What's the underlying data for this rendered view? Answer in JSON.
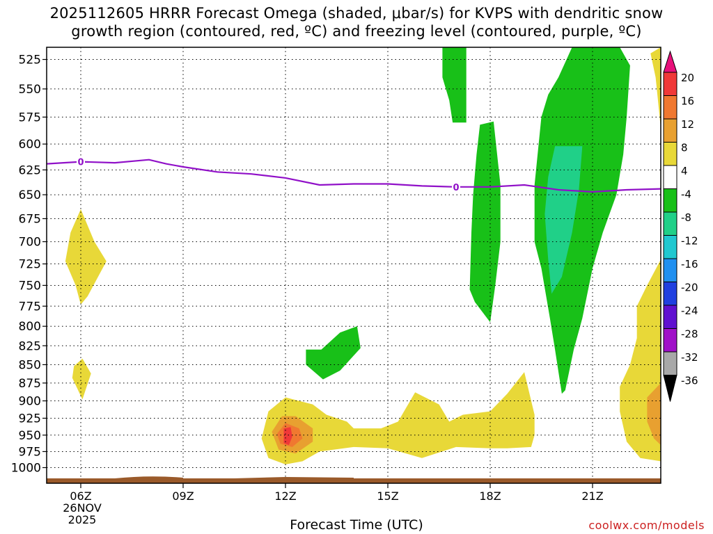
{
  "title": {
    "line1": "2025112605 HRRR Forecast Omega (shaded, μbar/s) for KVPS with dendritic snow",
    "line2": "growth region (contoured, red, ºC) and freezing level (contoured, purple, ºC)"
  },
  "xaxis_title": "Forecast Time (UTC)",
  "watermark": "coolwx.com/models",
  "date_label": {
    "day": "26NOV",
    "year": "2025"
  },
  "chart_data": {
    "type": "heatmap",
    "title": "2025112605 HRRR Forecast Omega (shaded, μbar/s) for KVPS with dendritic snow growth region (contoured, red, ºC) and freezing level (contoured, purple, ºC)",
    "xlabel": "Forecast Time (UTC)",
    "ylabel": "",
    "x_range_hours": [
      5,
      23
    ],
    "x_ticks": [
      {
        "hour": 6,
        "label": "06Z"
      },
      {
        "hour": 9,
        "label": "09Z"
      },
      {
        "hour": 12,
        "label": "12Z"
      },
      {
        "hour": 15,
        "label": "15Z"
      },
      {
        "hour": 18,
        "label": "18Z"
      },
      {
        "hour": 21,
        "label": "21Z"
      }
    ],
    "y_ticks": [
      525,
      550,
      575,
      600,
      625,
      650,
      675,
      700,
      725,
      750,
      775,
      800,
      825,
      850,
      875,
      900,
      925,
      950,
      975,
      1000
    ],
    "y_range_hPa": [
      515,
      1025
    ],
    "y_scale": "log-pressure",
    "grid": true,
    "colorbar": {
      "labels": [
        "20",
        "16",
        "12",
        "8",
        "4",
        "-4",
        "-8",
        "-12",
        "-16",
        "-20",
        "-24",
        "-28",
        "-32",
        "-36"
      ],
      "bands": [
        {
          "lo": 20,
          "hi": 24,
          "color": "#e8107a"
        },
        {
          "lo": 16,
          "hi": 20,
          "color": "#f03838"
        },
        {
          "lo": 12,
          "hi": 16,
          "color": "#f07830"
        },
        {
          "lo": 8,
          "hi": 12,
          "color": "#e8a030"
        },
        {
          "lo": 4,
          "hi": 8,
          "color": "#e8d838"
        },
        {
          "lo": -4,
          "hi": 4,
          "color": "#ffffff"
        },
        {
          "lo": -8,
          "hi": -4,
          "color": "#18c018"
        },
        {
          "lo": -12,
          "hi": -8,
          "color": "#20d088"
        },
        {
          "lo": -16,
          "hi": -12,
          "color": "#20c8d0"
        },
        {
          "lo": -20,
          "hi": -16,
          "color": "#2090f0"
        },
        {
          "lo": -24,
          "hi": -20,
          "color": "#2040e0"
        },
        {
          "lo": -28,
          "hi": -24,
          "color": "#6010d0"
        },
        {
          "lo": -32,
          "hi": -28,
          "color": "#a010c8"
        },
        {
          "lo": -36,
          "hi": -32,
          "color": "#a8a8a8"
        },
        {
          "lo": -40,
          "hi": -36,
          "color": "#000000"
        }
      ]
    },
    "freezing_level": {
      "label": "0",
      "label_hours": [
        6.0,
        17.0
      ],
      "color": "#9010c8",
      "points": [
        [
          5.0,
          619
        ],
        [
          6.0,
          617
        ],
        [
          7.0,
          618
        ],
        [
          8.0,
          615
        ],
        [
          8.5,
          619
        ],
        [
          9.0,
          622
        ],
        [
          10.0,
          627
        ],
        [
          11.0,
          629
        ],
        [
          12.0,
          633
        ],
        [
          13.0,
          640
        ],
        [
          14.0,
          639
        ],
        [
          15.0,
          639
        ],
        [
          16.0,
          641
        ],
        [
          17.0,
          642
        ],
        [
          18.0,
          642
        ],
        [
          19.0,
          640
        ],
        [
          20.0,
          645
        ],
        [
          21.0,
          647
        ],
        [
          22.0,
          645
        ],
        [
          23.0,
          644
        ]
      ]
    },
    "omega_regions": [
      {
        "value_band": "4 to 8",
        "color": "#e8d838",
        "polygon": [
          [
            6.0,
            665
          ],
          [
            6.4,
            700
          ],
          [
            6.75,
            722
          ],
          [
            6.2,
            763
          ],
          [
            6.0,
            773
          ],
          [
            5.85,
            750
          ],
          [
            5.55,
            722
          ],
          [
            5.7,
            690
          ]
        ]
      },
      {
        "value_band": "4 to 8",
        "color": "#e8d838",
        "polygon": [
          [
            6.05,
            842
          ],
          [
            6.3,
            862
          ],
          [
            6.05,
            898
          ],
          [
            5.75,
            868
          ],
          [
            5.8,
            852
          ]
        ]
      },
      {
        "value_band": "4 to 8",
        "color": "#e8d838",
        "polygon": [
          [
            11.3,
            955
          ],
          [
            11.5,
            915
          ],
          [
            12.0,
            895
          ],
          [
            12.8,
            905
          ],
          [
            13.2,
            920
          ],
          [
            13.8,
            930
          ],
          [
            14.0,
            940
          ],
          [
            14.8,
            940
          ],
          [
            15.3,
            930
          ],
          [
            15.8,
            888
          ],
          [
            16.5,
            905
          ],
          [
            16.8,
            930
          ],
          [
            17.2,
            920
          ],
          [
            18.0,
            915
          ],
          [
            18.5,
            890
          ],
          [
            19.0,
            860
          ],
          [
            19.3,
            920
          ],
          [
            19.3,
            950
          ],
          [
            19.2,
            968
          ],
          [
            18.5,
            970
          ],
          [
            18.0,
            970
          ],
          [
            17.0,
            968
          ],
          [
            16.0,
            985
          ],
          [
            15.0,
            970
          ],
          [
            14.0,
            968
          ],
          [
            13.0,
            975
          ],
          [
            12.5,
            990
          ],
          [
            12.0,
            995
          ],
          [
            11.5,
            985
          ]
        ]
      },
      {
        "value_band": "8 to 12",
        "color": "#e8a030",
        "polygon": [
          [
            11.6,
            945
          ],
          [
            11.9,
            922
          ],
          [
            12.3,
            922
          ],
          [
            12.8,
            940
          ],
          [
            12.8,
            960
          ],
          [
            12.3,
            978
          ],
          [
            11.8,
            972
          ]
        ]
      },
      {
        "value_band": "12 to 16",
        "color": "#f07830",
        "polygon": [
          [
            11.75,
            948
          ],
          [
            12.0,
            932
          ],
          [
            12.4,
            940
          ],
          [
            12.5,
            955
          ],
          [
            12.2,
            968
          ],
          [
            11.85,
            963
          ]
        ]
      },
      {
        "value_band": "16 to 20",
        "color": "#f03838",
        "polygon": [
          [
            11.95,
            940
          ],
          [
            12.15,
            938
          ],
          [
            12.2,
            952
          ],
          [
            12.1,
            965
          ],
          [
            11.95,
            962
          ]
        ]
      },
      {
        "value_band": "4 to 8",
        "color": "#e8d838",
        "polygon": [
          [
            23.0,
            720
          ],
          [
            22.6,
            750
          ],
          [
            22.3,
            775
          ],
          [
            22.3,
            815
          ],
          [
            22.1,
            850
          ],
          [
            21.8,
            880
          ],
          [
            21.8,
            915
          ],
          [
            22.0,
            960
          ],
          [
            22.4,
            985
          ],
          [
            23.0,
            990
          ]
        ]
      },
      {
        "value_band": "4 to 8",
        "color": "#e8d838",
        "polygon": [
          [
            22.7,
            520
          ],
          [
            23.0,
            515
          ],
          [
            23.0,
            585
          ],
          [
            22.85,
            540
          ]
        ]
      },
      {
        "value_band": "8 to 12",
        "color": "#e8a030",
        "polygon": [
          [
            23.0,
            875
          ],
          [
            22.6,
            895
          ],
          [
            22.6,
            930
          ],
          [
            22.8,
            955
          ],
          [
            23.0,
            965
          ]
        ]
      },
      {
        "value_band": "-4 to -8",
        "color": "#18c018",
        "polygon": [
          [
            16.6,
            515
          ],
          [
            17.3,
            515
          ],
          [
            17.3,
            580
          ],
          [
            16.9,
            580
          ],
          [
            16.8,
            560
          ],
          [
            16.6,
            540
          ]
        ]
      },
      {
        "value_band": "-4 to -8",
        "color": "#18c018",
        "polygon": [
          [
            17.7,
            582
          ],
          [
            18.1,
            579
          ],
          [
            18.3,
            640
          ],
          [
            18.3,
            700
          ],
          [
            18.15,
            750
          ],
          [
            18.0,
            795
          ],
          [
            17.55,
            770
          ],
          [
            17.4,
            755
          ],
          [
            17.45,
            690
          ],
          [
            17.5,
            650
          ],
          [
            17.6,
            610
          ]
        ]
      },
      {
        "value_band": "-4 to -8",
        "color": "#18c018",
        "polygon": [
          [
            20.4,
            515
          ],
          [
            21.8,
            515
          ],
          [
            22.1,
            530
          ],
          [
            22.0,
            575
          ],
          [
            21.9,
            610
          ],
          [
            21.7,
            650
          ],
          [
            21.3,
            690
          ],
          [
            21.0,
            730
          ],
          [
            20.7,
            790
          ],
          [
            20.45,
            830
          ],
          [
            20.2,
            885
          ],
          [
            20.1,
            890
          ],
          [
            19.9,
            830
          ],
          [
            19.75,
            790
          ],
          [
            19.5,
            730
          ],
          [
            19.3,
            700
          ],
          [
            19.3,
            640
          ],
          [
            19.5,
            575
          ],
          [
            19.7,
            555
          ],
          [
            20.0,
            540
          ]
        ]
      },
      {
        "value_band": "-8 to -12",
        "color": "#20d088",
        "polygon": [
          [
            19.9,
            602
          ],
          [
            20.7,
            602
          ],
          [
            20.6,
            645
          ],
          [
            20.4,
            690
          ],
          [
            20.1,
            740
          ],
          [
            19.8,
            760
          ],
          [
            19.7,
            720
          ],
          [
            19.6,
            670
          ],
          [
            19.7,
            632
          ]
        ]
      },
      {
        "value_band": "-4 to -8",
        "color": "#18c018",
        "polygon": [
          [
            13.05,
            830
          ],
          [
            13.6,
            808
          ],
          [
            14.1,
            800
          ],
          [
            14.2,
            828
          ],
          [
            13.6,
            858
          ],
          [
            13.1,
            870
          ],
          [
            12.6,
            850
          ],
          [
            12.6,
            830
          ]
        ]
      }
    ],
    "terrain": {
      "color": "#9a5a2a"
    }
  }
}
